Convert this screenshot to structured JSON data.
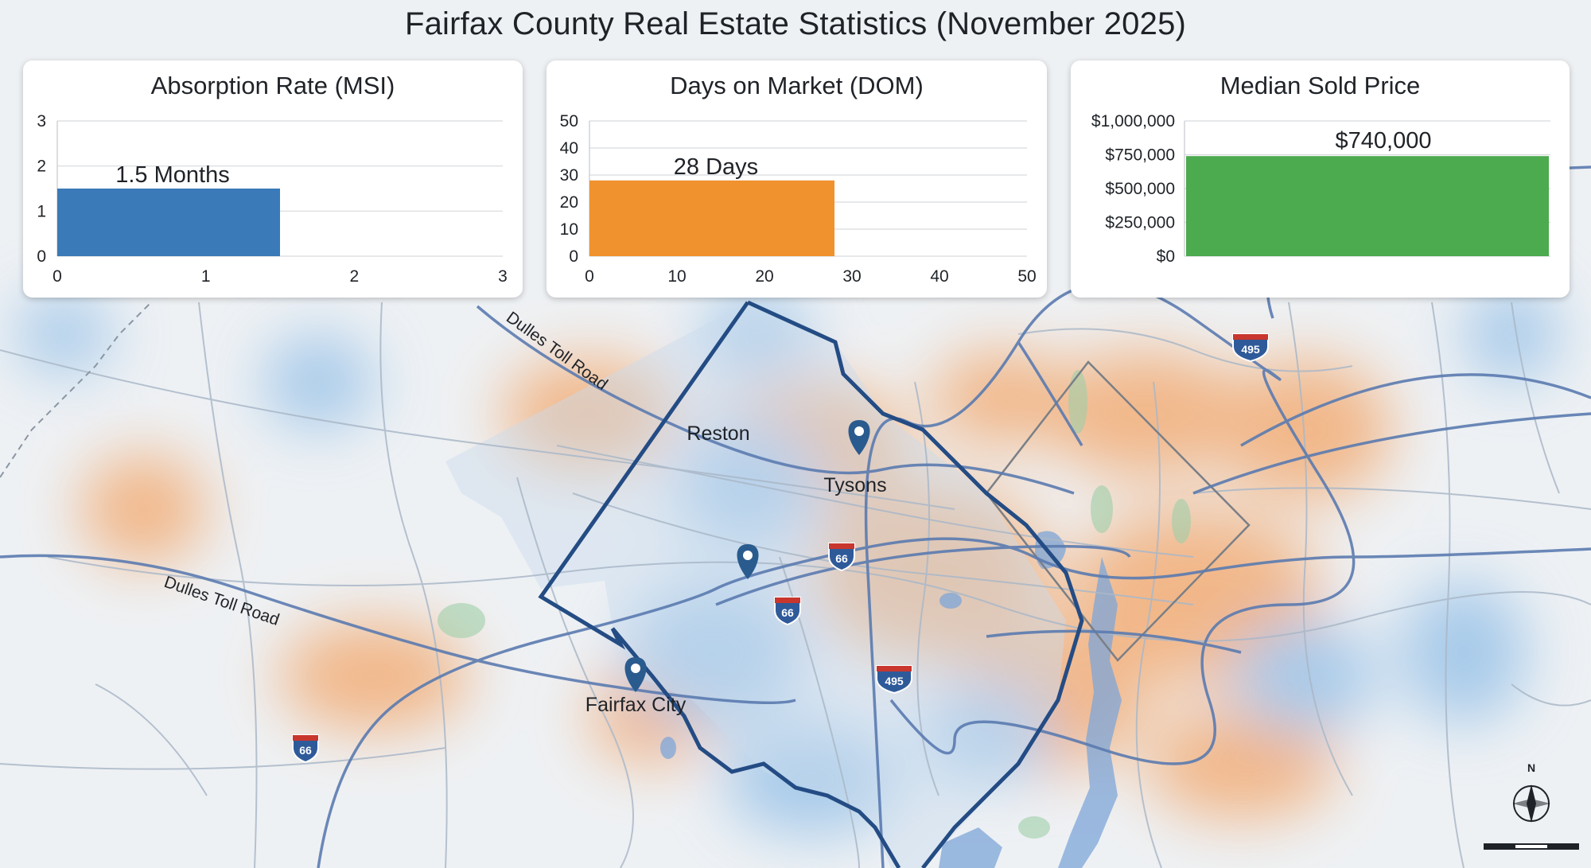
{
  "title": "Fairfax County Real Estate Statistics (November 2025)",
  "chart_data": [
    {
      "type": "bar",
      "orientation": "horizontal",
      "title": "Absorption Rate (MSI)",
      "value": 1.5,
      "value_label": "1.5 Months",
      "xlim": [
        0,
        3
      ],
      "ylim": [
        0,
        3
      ],
      "x_ticks": [
        "0",
        "1",
        "2",
        "3"
      ],
      "y_ticks": [
        "0",
        "1",
        "2",
        "3"
      ],
      "bar_span": [
        0,
        1.5
      ],
      "color": "#3a7ab8",
      "grid": true
    },
    {
      "type": "bar",
      "orientation": "horizontal",
      "title": "Days on Market (DOM)",
      "value": 28,
      "value_label": "28 Days",
      "xlim": [
        0,
        50
      ],
      "ylim": [
        0,
        50
      ],
      "x_ticks": [
        "0",
        "10",
        "20",
        "30",
        "40",
        "50"
      ],
      "y_ticks": [
        "0",
        "10",
        "20",
        "30",
        "40",
        "50"
      ],
      "bar_span": [
        0,
        28
      ],
      "color": "#f0922e",
      "grid": true
    },
    {
      "type": "bar",
      "orientation": "vertical",
      "title": "Median Sold Price",
      "value": 740000,
      "value_label": "$740,000",
      "ylim": [
        0,
        1000000
      ],
      "y_ticks": [
        "$0",
        "$250,000",
        "$500,000",
        "$750,000",
        "$1,000,000"
      ],
      "color": "#4caa4f",
      "grid": true
    }
  ],
  "map": {
    "place_labels": {
      "reston": "Reston",
      "tysons": "Tysons",
      "fairfax_city": "Fairfax City"
    },
    "road_labels": {
      "dulles_north": "Dulles Toll Road",
      "dulles_south": "Dulles Toll Road"
    },
    "shields": {
      "i66_a": "66",
      "i66_b": "66",
      "i66_c": "66",
      "i495_a": "495",
      "i495_b": "495"
    },
    "compass": "N",
    "colors": {
      "county_border": "#244c84",
      "road": "#5b7bb0",
      "hot": "#f3a466",
      "cool": "#8fbde6",
      "water": "#6d97cf",
      "park": "#9fcfa9"
    }
  }
}
